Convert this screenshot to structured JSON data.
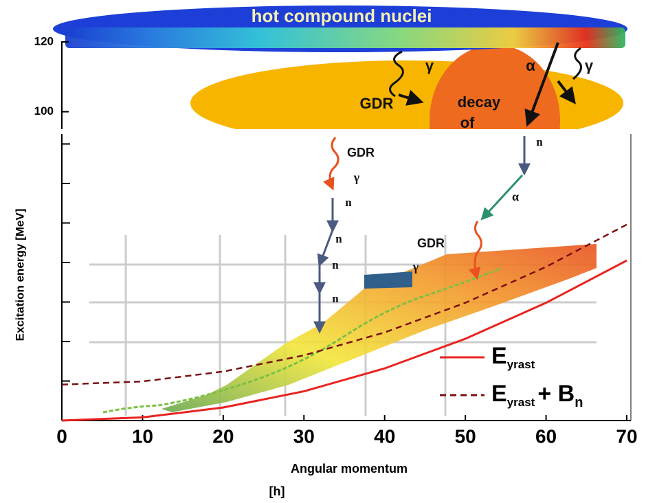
{
  "chart_data": {
    "type": "line",
    "xlabel": [
      "Angular momentum",
      "[h]"
    ],
    "ylabel": "Excitation energy [MeV]",
    "xlim": [
      0,
      70
    ],
    "xticks": [
      0,
      10,
      20,
      30,
      40,
      50,
      60,
      70
    ],
    "ylim": [
      0,
      72
    ],
    "ytick_marks": [
      0,
      10,
      20,
      30,
      40,
      50,
      60,
      70
    ],
    "x": [
      0,
      10,
      20,
      30,
      40,
      50,
      60,
      70
    ],
    "series": [
      {
        "name": {
          "base": "E",
          "sub": "yrast"
        },
        "color": "#e8231f",
        "dash": false,
        "values": [
          0,
          0.8,
          3.3,
          7.4,
          13.2,
          20.7,
          29.8,
          40.5
        ]
      },
      {
        "name": {
          "base": "E",
          "sub": "yrast",
          "plus": "+ B",
          "plus_sub": "n"
        },
        "color": "#7a1010",
        "dash": true,
        "values": [
          9.1,
          9.9,
          12.4,
          16.5,
          22.3,
          29.8,
          38.9,
          49.6
        ]
      }
    ],
    "inset": {
      "ylim": [
        95,
        132
      ],
      "yticks": [
        100,
        120
      ]
    },
    "annotations": [
      "hot compound nuclei",
      "γ",
      "GDR",
      "decay",
      "of",
      "α",
      "γ",
      "n",
      "GDR",
      "γ",
      "n",
      "n",
      "n",
      "n",
      "α",
      "GDR",
      "γ"
    ]
  }
}
